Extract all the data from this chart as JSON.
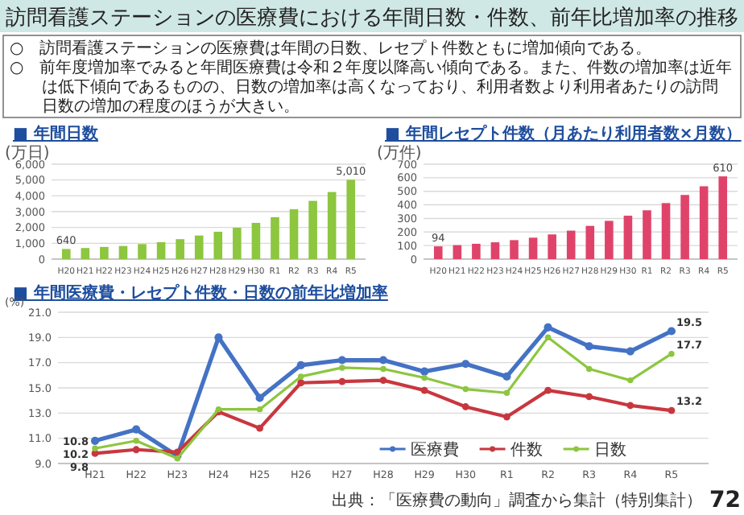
{
  "chart_data": [
    {
      "type": "other",
      "title": "訪問看護ステーションの医療費における年間日数・件数、前年比増加率の推移",
      "annotations": [
        "○　訪問看護ステーションの医療費は年間の日数、レセプト件数ともに増加傾向である。",
        "○　前年度増加率でみると年間医療費は令和２年度以降高い傾向である。また、件数の増加率は近年は低下傾向であるものの、日数の増加率は高くなっており、利用者数より利用者あたりの訪問日数の増加の程度のほうが大きい。"
      ]
    },
    {
      "type": "bar",
      "title": "■ 年間日数",
      "ylabel": "(万日)",
      "categories": [
        "H20",
        "H21",
        "H22",
        "H23",
        "H24",
        "H25",
        "H26",
        "H27",
        "H28",
        "H29",
        "H30",
        "R1",
        "R2",
        "R3",
        "R4",
        "R5"
      ],
      "values": [
        640,
        700,
        770,
        830,
        950,
        1070,
        1260,
        1490,
        1730,
        1980,
        2290,
        2650,
        3150,
        3680,
        4240,
        5010
      ],
      "value_labels": [
        "640",
        null,
        null,
        null,
        null,
        null,
        null,
        null,
        null,
        null,
        null,
        null,
        null,
        null,
        null,
        "5,010"
      ],
      "color": "#8dc63f",
      "ylim": [
        0,
        6000
      ],
      "yticks": [
        0,
        {
          "value": 1000,
          "label": "1,000"
        },
        {
          "value": 2000,
          "label": "2,000"
        },
        {
          "value": 3000,
          "label": "3,000"
        },
        {
          "value": 4000,
          "label": "4,000"
        },
        {
          "value": 5000,
          "label": "5,000"
        },
        {
          "value": 6000,
          "label": "6,000"
        }
      ],
      "grid": "y"
    },
    {
      "type": "bar",
      "title": "■ 年間レセプト件数（月あたり利用者数×月数）",
      "ylabel": "(万件)",
      "categories": [
        "H20",
        "H21",
        "H22",
        "H23",
        "H24",
        "H25",
        "H26",
        "H27",
        "H28",
        "H29",
        "H30",
        "R1",
        "R2",
        "R3",
        "R4",
        "R5"
      ],
      "values": [
        94,
        103,
        113,
        124,
        140,
        158,
        182,
        210,
        245,
        282,
        320,
        360,
        413,
        473,
        537,
        610
      ],
      "value_labels": [
        "94",
        null,
        null,
        null,
        null,
        null,
        null,
        null,
        null,
        null,
        null,
        null,
        null,
        null,
        null,
        "610"
      ],
      "color": "#e0436a",
      "ylim": [
        0,
        700
      ],
      "yticks": [
        0,
        100,
        200,
        300,
        400,
        500,
        600,
        700
      ],
      "grid": "y"
    },
    {
      "type": "line",
      "title": "■ 年間医療費・レセプト件数・日数の前年比増加率",
      "ylabel": "(%)",
      "categories": [
        "H21",
        "H22",
        "H23",
        "H24",
        "H25",
        "H26",
        "H27",
        "H28",
        "H29",
        "H30",
        "R1",
        "R2",
        "R3",
        "R4",
        "R5"
      ],
      "series": [
        {
          "name": "医療費",
          "color": "#4472c4",
          "values": [
            10.8,
            11.7,
            9.6,
            19.0,
            14.2,
            16.8,
            17.2,
            17.2,
            16.3,
            16.9,
            15.9,
            19.8,
            18.3,
            17.9,
            19.5
          ],
          "value_labels": [
            "10.8",
            null,
            null,
            null,
            null,
            null,
            null,
            null,
            null,
            null,
            null,
            null,
            null,
            null,
            "19.5"
          ]
        },
        {
          "name": "件数",
          "color": "#c8373f",
          "values": [
            9.8,
            10.1,
            9.9,
            13.1,
            11.8,
            15.4,
            15.5,
            15.6,
            14.8,
            13.5,
            12.7,
            14.8,
            14.3,
            13.6,
            13.2
          ],
          "value_labels": [
            "9.8",
            null,
            null,
            null,
            null,
            null,
            null,
            null,
            null,
            null,
            null,
            null,
            null,
            null,
            "13.2"
          ]
        },
        {
          "name": "日数",
          "color": "#8dc63f",
          "values": [
            10.2,
            10.8,
            9.4,
            13.3,
            13.3,
            15.9,
            16.6,
            16.5,
            15.8,
            14.9,
            14.6,
            19.0,
            16.5,
            15.6,
            17.7
          ],
          "value_labels": [
            "10.2",
            null,
            null,
            null,
            null,
            null,
            null,
            null,
            null,
            null,
            null,
            null,
            null,
            null,
            "17.7"
          ]
        }
      ],
      "ylim": [
        9,
        21
      ],
      "yticks": [
        {
          "value": 9,
          "label": "9.0"
        },
        {
          "value": 11,
          "label": "11.0"
        },
        {
          "value": 13,
          "label": "13.0"
        },
        {
          "value": 15,
          "label": "15.0"
        },
        {
          "value": 17,
          "label": "17.0"
        },
        {
          "value": 19,
          "label": "19.0"
        },
        {
          "value": 21,
          "label": "21.0"
        }
      ],
      "grid": "y",
      "legend": "bottom",
      "marker": "circle",
      "annotations": [
        "出典：「医療費の動向」調査から集計（特別集計）",
        "72"
      ]
    }
  ]
}
